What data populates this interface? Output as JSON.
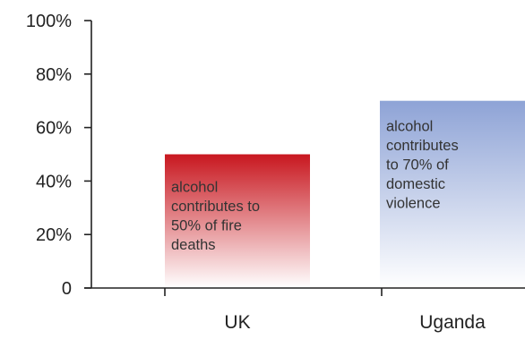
{
  "chart_data": {
    "type": "bar",
    "categories": [
      "UK",
      "Uganda"
    ],
    "values": [
      50,
      70
    ],
    "ylim": [
      0,
      100
    ],
    "yticks": [
      0,
      20,
      40,
      60,
      80,
      100
    ],
    "ytick_labels": [
      "0",
      "20%",
      "40%",
      "60%",
      "80%",
      "100%"
    ],
    "grid": false,
    "annotations": [
      [
        "alcohol",
        "contributes to",
        "50% of fire",
        "deaths"
      ],
      [
        "alcohol",
        "contributes",
        "to 70% of",
        "domestic",
        "violence"
      ]
    ],
    "colors": {
      "UK": {
        "top": "#c8171f",
        "bottom": "#ffffff"
      },
      "Uganda": {
        "top": "#8ea3d6",
        "bottom": "#ffffff"
      }
    }
  }
}
